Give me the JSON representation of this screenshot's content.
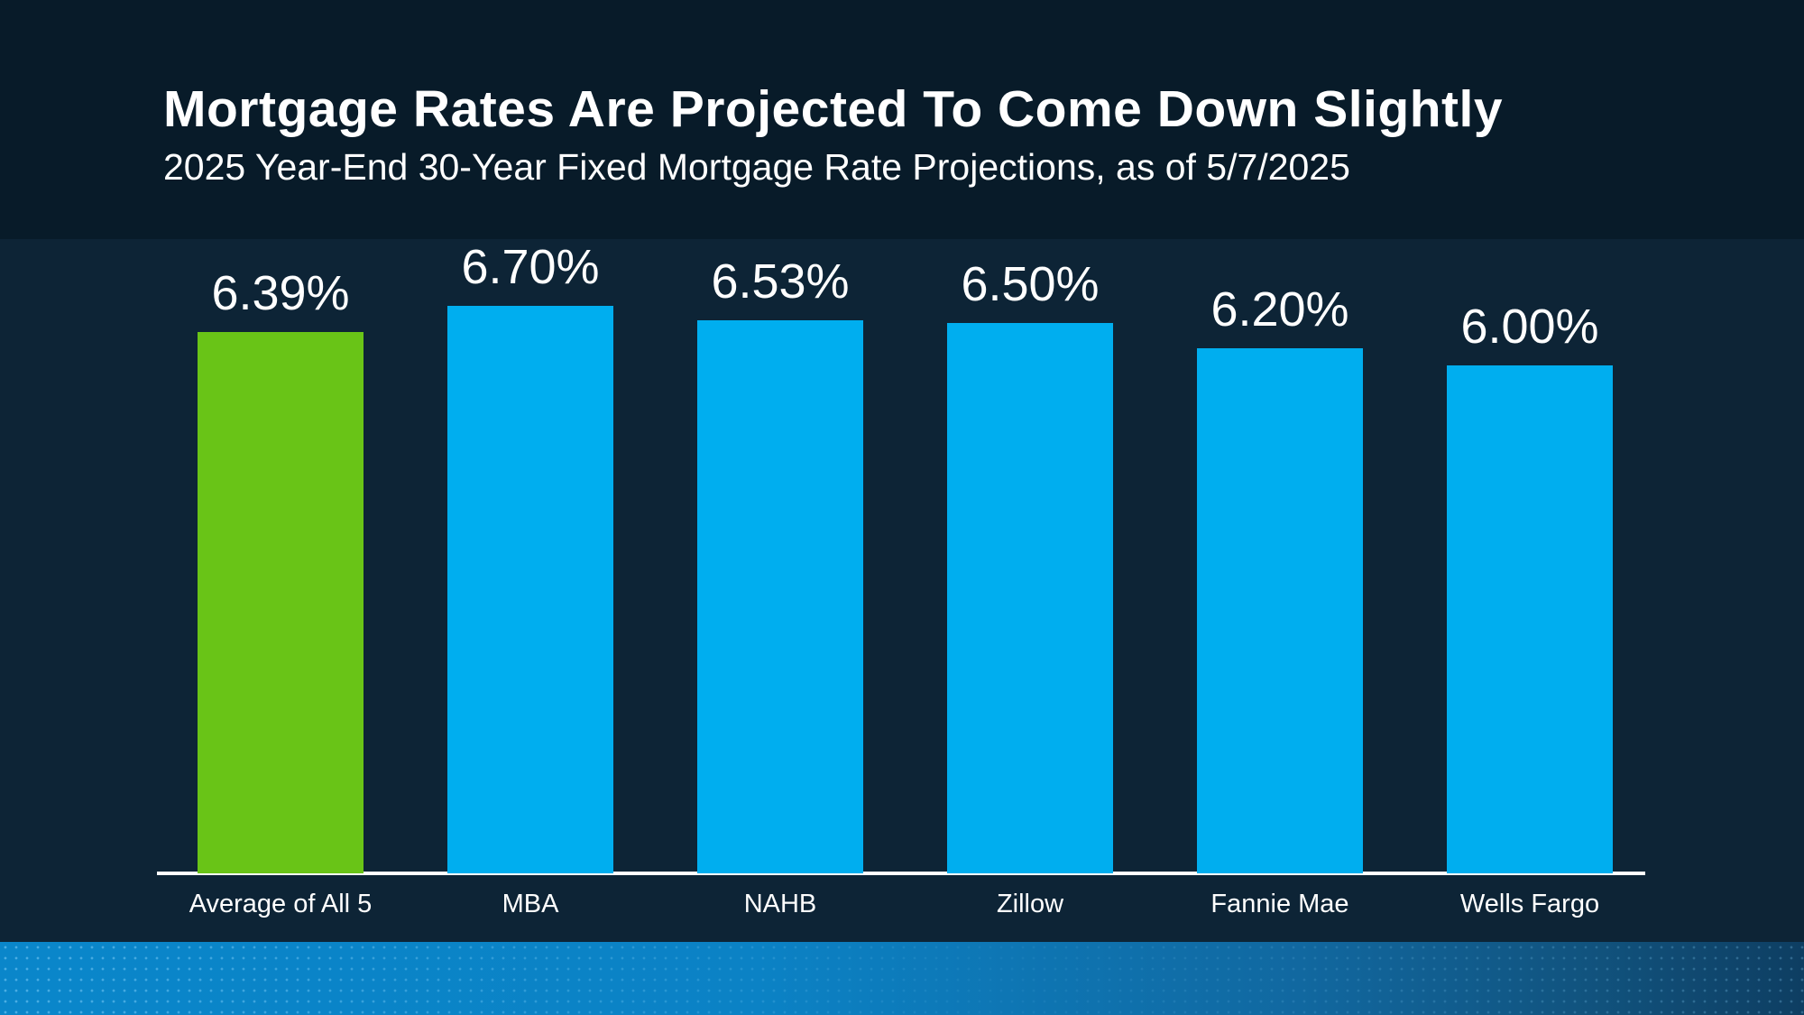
{
  "slide": {
    "title": "Mortgage Rates Are Projected To Come Down Slightly",
    "subtitle": "2025 Year-End 30-Year Fixed Mortgage Rate Projections, as of 5/7/2025"
  },
  "colors": {
    "highlight_bar": "#69C417",
    "default_bar": "#00AEEF",
    "text": "#FFFFFF",
    "header_background": "#081B29",
    "chart_background": "#0D2436",
    "axis_line": "#FFFFFF",
    "footer_strip_left": "#0A86CA",
    "footer_strip_right": "#0E3E62"
  },
  "chart_data": {
    "type": "bar",
    "title": "Mortgage Rates Are Projected To Come Down Slightly",
    "subtitle": "2025 Year-End 30-Year Fixed Mortgage Rate Projections, as of 5/7/2025",
    "categories": [
      "Average of All 5",
      "MBA",
      "NAHB",
      "Zillow",
      "Fannie Mae",
      "Wells Fargo"
    ],
    "values": [
      6.39,
      6.7,
      6.53,
      6.5,
      6.2,
      6.0
    ],
    "value_labels": [
      "6.39%",
      "6.70%",
      "6.53%",
      "6.50%",
      "6.20%",
      "6.00%"
    ],
    "bar_colors": [
      "#69C417",
      "#00AEEF",
      "#00AEEF",
      "#00AEEF",
      "#00AEEF",
      "#00AEEF"
    ],
    "highlight_index": 0,
    "xlabel": "",
    "ylabel": "",
    "ylim": [
      0,
      6.7
    ],
    "grid": false,
    "legend": false,
    "data_labels": true
  }
}
